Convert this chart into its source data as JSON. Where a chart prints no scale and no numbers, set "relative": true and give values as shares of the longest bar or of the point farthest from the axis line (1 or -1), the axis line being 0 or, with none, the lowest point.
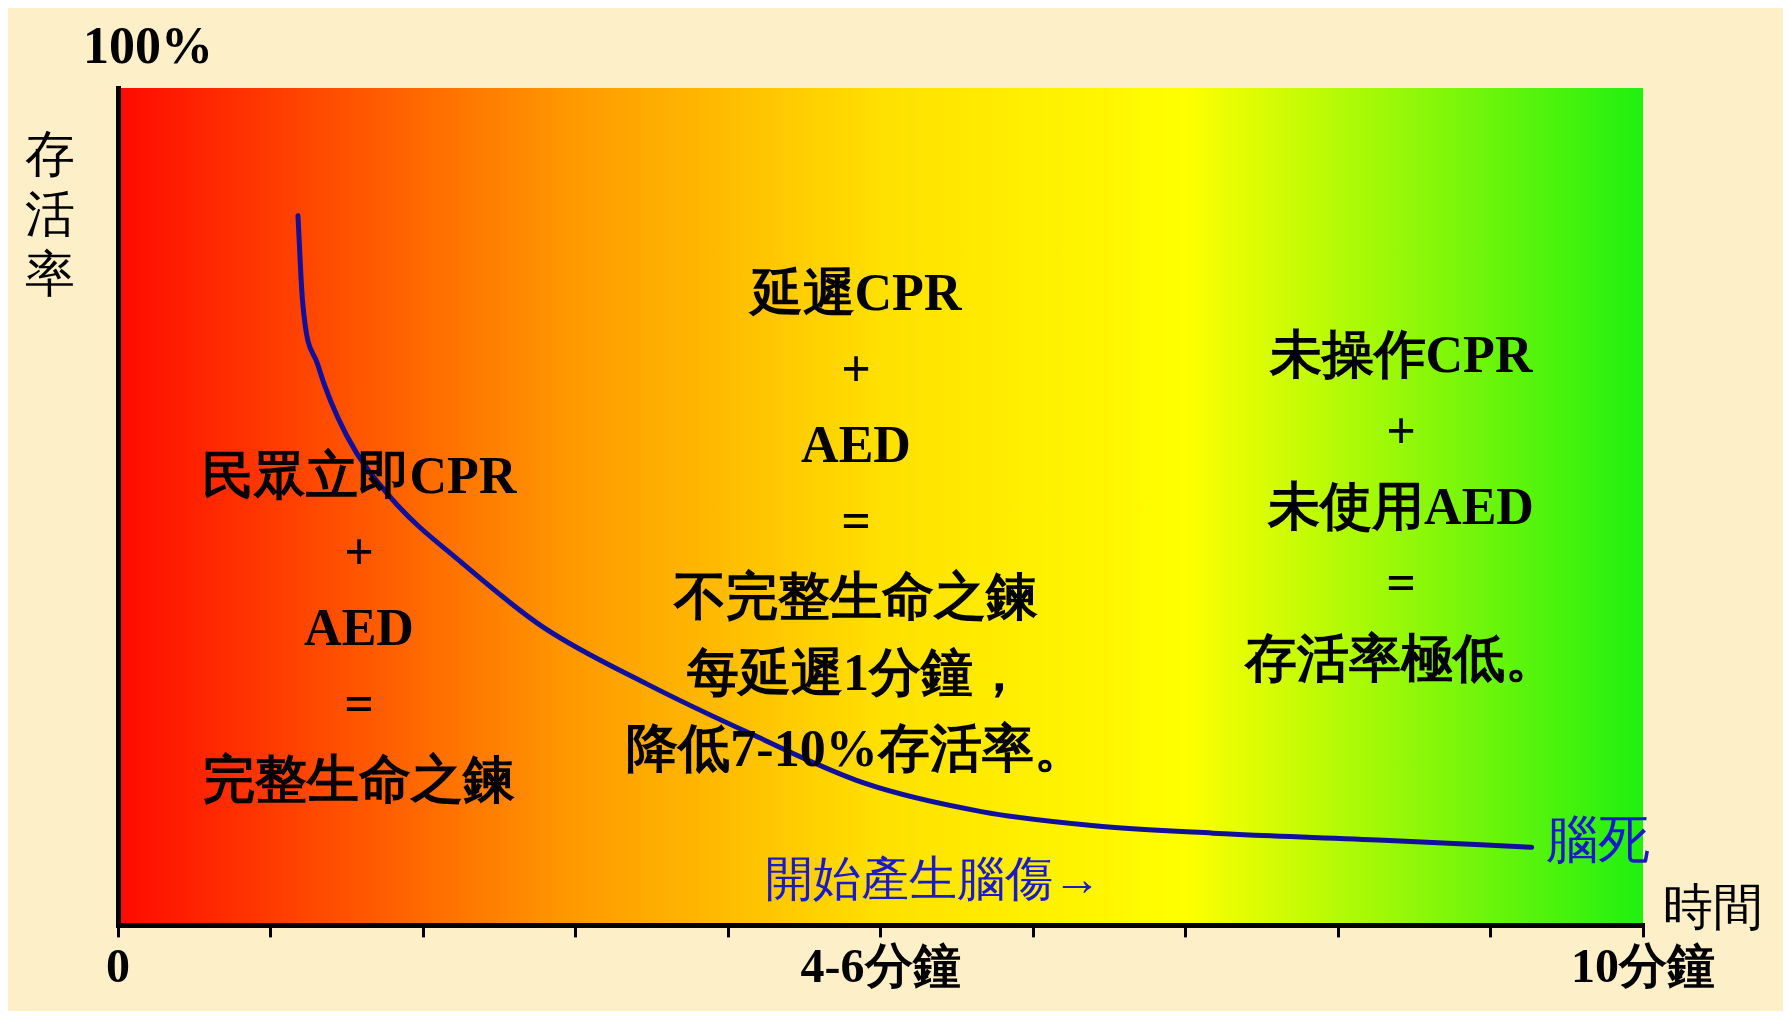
{
  "chart_data": {
    "type": "line",
    "xlabel": "時間",
    "ylabel": "存活率",
    "relative": true,
    "x": [
      1.18,
      1.21,
      1.31,
      1.5,
      1.8,
      2.26,
      2.79,
      3.47,
      4.15,
      4.9,
      5.67,
      6.42,
      7.18,
      8.3,
      9.27
    ],
    "series": [
      {
        "color": "#10109a",
        "values": [
          1,
          0.88,
          0.79,
          0.69,
          0.6,
          0.51,
          0.42,
          0.34,
          0.27,
          0.2,
          0.16,
          0.14,
          0.13,
          0.12,
          0.11
        ]
      }
    ],
    "xlim": [
      0,
      10
    ],
    "xticks": [
      {
        "value": 0,
        "label": "0"
      },
      {
        "value": 1,
        "label": null
      },
      {
        "value": 2,
        "label": null
      },
      {
        "value": 3,
        "label": null
      },
      {
        "value": 4,
        "label": null
      },
      {
        "value": 5,
        "label": "4-6分鐘"
      },
      {
        "value": 6,
        "label": null
      },
      {
        "value": 7,
        "label": null
      },
      {
        "value": 8,
        "label": null
      },
      {
        "value": 9,
        "label": null
      },
      {
        "value": 10,
        "label": "10分鐘"
      }
    ],
    "grid": false,
    "legend": false,
    "marker": "none",
    "line_style": "solid",
    "annotations": [
      "民眾立即CPR\n+\nAED\n=\n完整生命之鍊",
      "延遲CPR\n+\nAED\n=\n不完整生命之鍊",
      "每延遲1分鐘，",
      "降低7-10%存活率。",
      "未操作CPR\n+\n未使用AED\n=\n存活率極低。",
      "開始產生腦傷→",
      "100%",
      {
        "text": "腦死",
        "x": 9.27,
        "y": 0.11
      }
    ]
  }
}
